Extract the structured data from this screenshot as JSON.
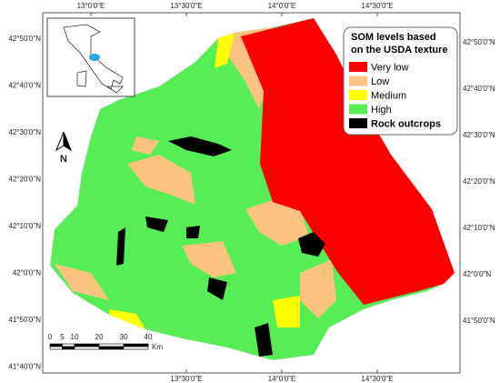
{
  "map": {
    "top_labels": [
      "13°0'0\"E",
      "13°30'0\"E",
      "14°0'0\"E",
      "14°30'0\"E"
    ],
    "bottom_labels": [
      "13°30'0\"E",
      "14°0'0\"E",
      "14°30'0\"E"
    ],
    "left_labels": [
      "42°50'0\"N",
      "42°40'0\"N",
      "42°30'0\"N",
      "42°20'0\"N",
      "42°10'0\"N",
      "42°0'0\"N",
      "41°50'0\"N",
      "41°40'0\"N"
    ],
    "right_labels": [
      "42°50'0\"N",
      "42°40'0\"N",
      "42°30'0\"N",
      "42°20'0\"N",
      "42°10'0\"N",
      "42°0'0\"N",
      "41°50'0\"N"
    ],
    "legend": {
      "title_lines": [
        "SOM levels based",
        "on the USDA texture"
      ],
      "items": [
        {
          "label": "Very low",
          "color": "#ff0000"
        },
        {
          "label": "Low",
          "color": "#fcc380"
        },
        {
          "label": "Medium",
          "color": "#ffff00"
        },
        {
          "label": "High",
          "color": "#55ee55"
        },
        {
          "label": "Rock outcrops",
          "color": "#000000"
        }
      ]
    },
    "north": "N",
    "scale": {
      "ticks": [
        0,
        5,
        10,
        20,
        30,
        40
      ],
      "unit": "Km"
    }
  }
}
